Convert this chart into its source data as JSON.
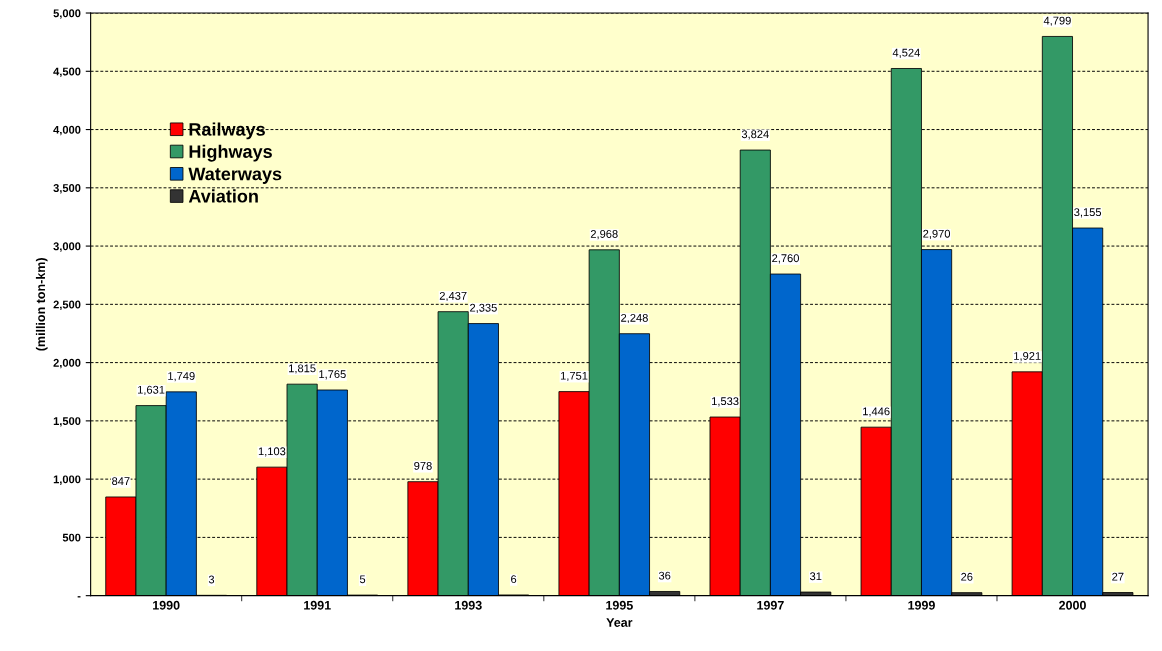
{
  "chart_data": {
    "type": "bar",
    "xlabel": "Year",
    "ylabel": "(million ton-km)",
    "categories": [
      "1990",
      "1991",
      "1993",
      "1995",
      "1997",
      "1999",
      "2000"
    ],
    "series": [
      {
        "name": "Railways",
        "color": "#ff0000",
        "values": [
          847,
          1103,
          978,
          1751,
          1533,
          1446,
          1921
        ],
        "value_labels": [
          "847",
          "1,103",
          "978",
          "1,751",
          "1,533",
          "1,446",
          "1,921"
        ]
      },
      {
        "name": "Highways",
        "color": "#339966",
        "values": [
          1631,
          1815,
          2437,
          2968,
          3824,
          4524,
          4799
        ],
        "value_labels": [
          "1,631",
          "1,815",
          "2,437",
          "2,968",
          "3,824",
          "4,524",
          "4,799"
        ]
      },
      {
        "name": "Waterways",
        "color": "#0066cc",
        "values": [
          1749,
          1765,
          2335,
          2248,
          2760,
          2970,
          3155
        ],
        "value_labels": [
          "1,749",
          "1,765",
          "2,335",
          "2,248",
          "2,760",
          "2,970",
          "3,155"
        ]
      },
      {
        "name": "Aviation",
        "color": "#333333",
        "values": [
          3,
          5,
          6,
          36,
          31,
          26,
          27
        ],
        "value_labels": [
          "3",
          "5",
          "6",
          "36",
          "31",
          "26",
          "27"
        ]
      }
    ],
    "ylim": [
      0,
      5000
    ],
    "yticks": [
      {
        "value": 0,
        "label": "-"
      },
      500,
      {
        "value": 1000,
        "label": "1,000"
      },
      {
        "value": 1500,
        "label": "1,500"
      },
      {
        "value": 2000,
        "label": "2,000"
      },
      {
        "value": 2500,
        "label": "2,500"
      },
      {
        "value": 3000,
        "label": "3,000"
      },
      {
        "value": 3500,
        "label": "3,500"
      },
      {
        "value": 4000,
        "label": "4,000"
      },
      {
        "value": 4500,
        "label": "4,500"
      },
      {
        "value": 5000,
        "label": "5,000"
      }
    ],
    "grid": "y",
    "legend": "top left"
  }
}
